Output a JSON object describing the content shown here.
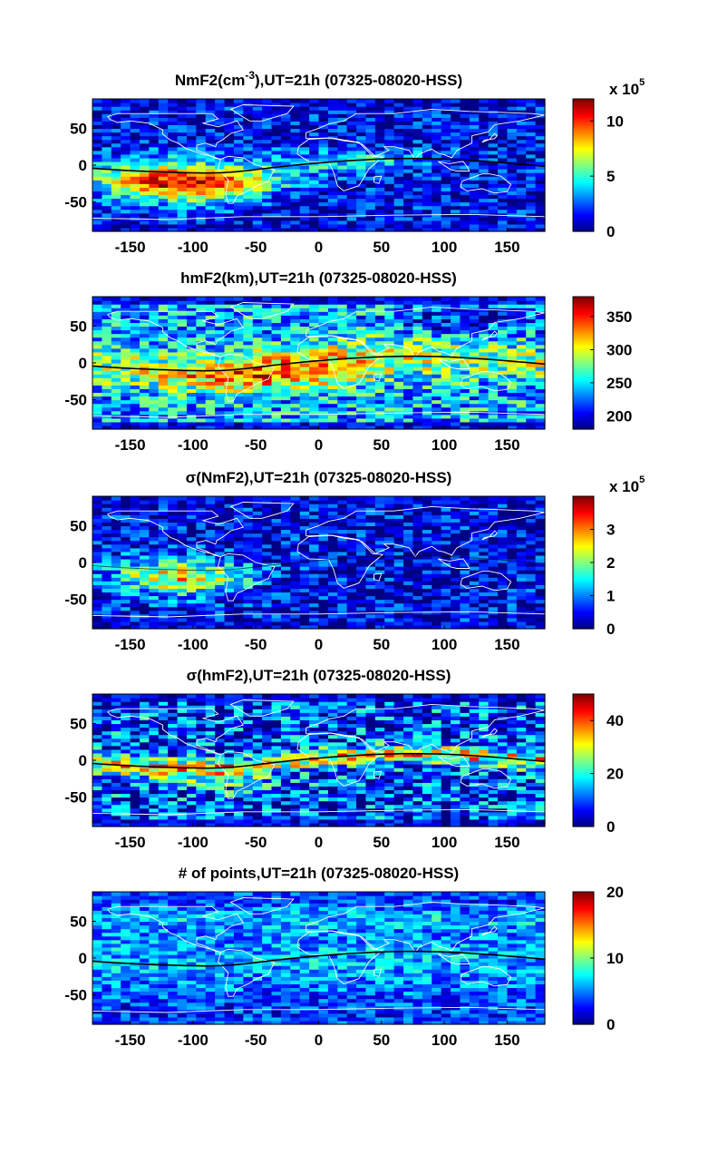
{
  "chart_data": [
    {
      "type": "heatmap",
      "title": "NmF2(cm^-3),UT=21h (07325-08020-HSS)",
      "title_main": "NmF2(cm",
      "title_sup": "-3",
      "title_rest": "),UT=21h (07325-08020-HSS)",
      "xlim": [
        -180,
        180
      ],
      "ylim": [
        -90,
        90
      ],
      "xticks": [
        "-150",
        "-100",
        "-50",
        "0",
        "50",
        "100",
        "150"
      ],
      "yticks": [
        "50",
        "0",
        "-50"
      ],
      "colorbar": {
        "min": 0,
        "max": 12,
        "ticks": [
          "10",
          "5",
          "0"
        ],
        "exponent_base": "x 10",
        "exponent": "5"
      },
      "profile": "nmf2"
    },
    {
      "type": "heatmap",
      "title": "hmF2(km),UT=21h (07325-08020-HSS)",
      "xlim": [
        -180,
        180
      ],
      "ylim": [
        -90,
        90
      ],
      "xticks": [
        "-150",
        "-100",
        "-50",
        "0",
        "50",
        "100",
        "150"
      ],
      "yticks": [
        "50",
        "0",
        "-50"
      ],
      "colorbar": {
        "min": 180,
        "max": 380,
        "ticks": [
          "350",
          "300",
          "250",
          "200"
        ]
      },
      "profile": "hmf2"
    },
    {
      "type": "heatmap",
      "title": "σ(NmF2),UT=21h (07325-08020-HSS)",
      "xlim": [
        -180,
        180
      ],
      "ylim": [
        -90,
        90
      ],
      "xticks": [
        "-150",
        "-100",
        "-50",
        "0",
        "50",
        "100",
        "150"
      ],
      "yticks": [
        "50",
        "0",
        "-50"
      ],
      "colorbar": {
        "min": 0,
        "max": 4,
        "ticks": [
          "3",
          "2",
          "1",
          "0"
        ],
        "exponent_base": "x 10",
        "exponent": "5"
      },
      "profile": "snmf2"
    },
    {
      "type": "heatmap",
      "title": "σ(hmF2),UT=21h (07325-08020-HSS)",
      "xlim": [
        -180,
        180
      ],
      "ylim": [
        -90,
        90
      ],
      "xticks": [
        "-150",
        "-100",
        "-50",
        "0",
        "50",
        "100",
        "150"
      ],
      "yticks": [
        "50",
        "0",
        "-50"
      ],
      "colorbar": {
        "min": 0,
        "max": 50,
        "ticks": [
          "40",
          "20",
          "0"
        ]
      },
      "profile": "shmf2"
    },
    {
      "type": "heatmap",
      "title": "# of points,UT=21h (07325-08020-HSS)",
      "xlim": [
        -180,
        180
      ],
      "ylim": [
        -90,
        90
      ],
      "xticks": [
        "-150",
        "-100",
        "-50",
        "0",
        "50",
        "100",
        "150"
      ],
      "yticks": [
        "50",
        "0",
        "-50"
      ],
      "colorbar": {
        "min": 0,
        "max": 20,
        "ticks": [
          "20",
          "10",
          "0"
        ]
      },
      "profile": "npts"
    }
  ]
}
